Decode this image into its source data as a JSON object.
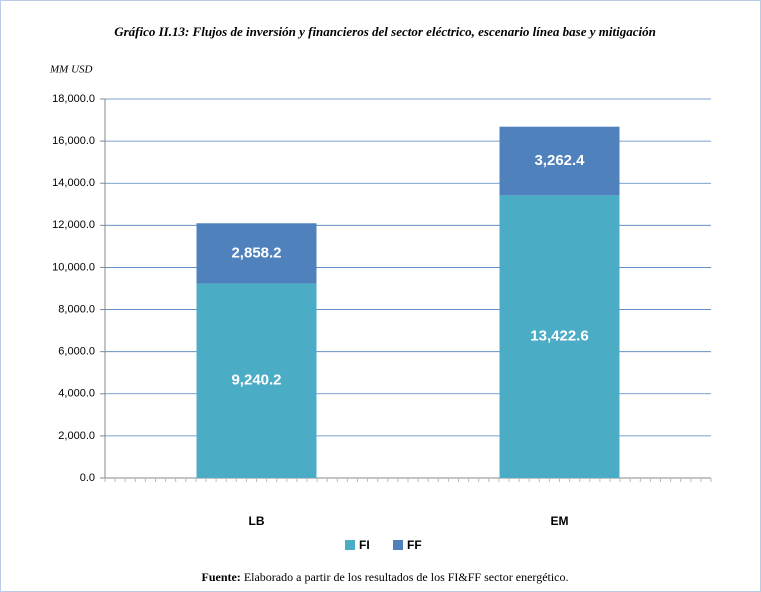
{
  "chart_data": {
    "type": "stacked_bar",
    "title": "Gráfico II.13: Flujos de inversión y financieros  del sector eléctrico, escenario línea base y mitigación",
    "y_axis_label": "MM USD",
    "categories": [
      "LB",
      "EM"
    ],
    "series": [
      {
        "name": "FI",
        "color": "#4bacc6",
        "values": [
          9240.2,
          13422.6
        ],
        "value_labels": [
          "9,240.2",
          "13,422.6"
        ]
      },
      {
        "name": "FF",
        "color": "#4f81bd",
        "values": [
          2858.2,
          3262.4
        ],
        "value_labels": [
          "2,858.2",
          "3,262.4"
        ]
      }
    ],
    "ylim": [
      0,
      18000
    ],
    "yticks": [
      {
        "value": 0,
        "label": "0.0"
      },
      {
        "value": 2000,
        "label": "2,000.0"
      },
      {
        "value": 4000,
        "label": "4,000.0"
      },
      {
        "value": 6000,
        "label": "6,000.0"
      },
      {
        "value": 8000,
        "label": "8,000.0"
      },
      {
        "value": 10000,
        "label": "10,000.0"
      },
      {
        "value": 12000,
        "label": "12,000.0"
      },
      {
        "value": 14000,
        "label": "14,000.0"
      },
      {
        "value": 16000,
        "label": "16,000.0"
      },
      {
        "value": 18000,
        "label": "18,000.0"
      }
    ],
    "grid": true,
    "legend": "bottom",
    "source_label": "Fuente:",
    "source": "Elaborado a partir de los resultados de los FI&FF sector energético."
  }
}
